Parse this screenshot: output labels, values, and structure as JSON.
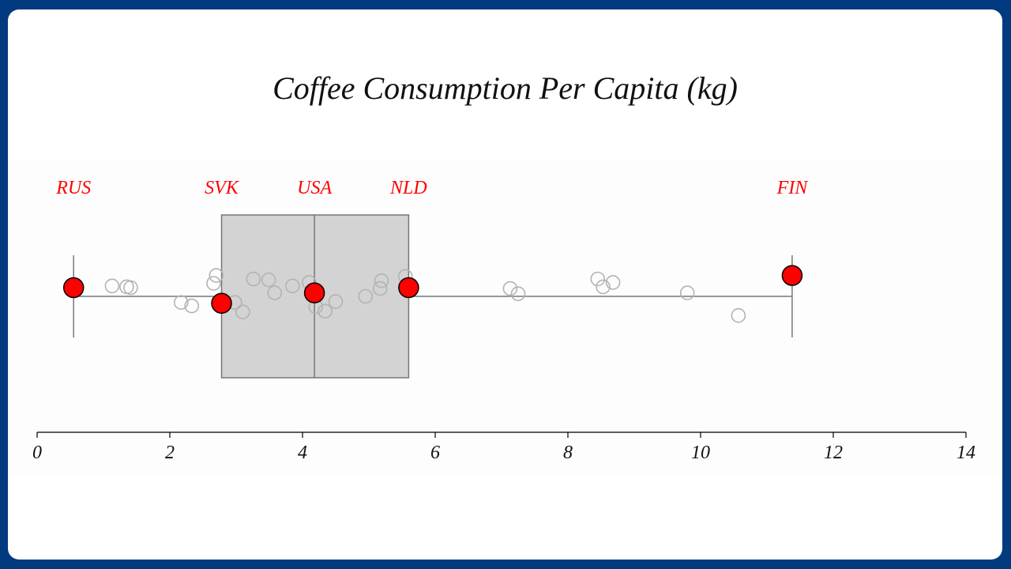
{
  "chart_data": {
    "type": "box",
    "title": "Coffee Consumption Per Capita (kg)",
    "xlabel": "",
    "ylabel": "",
    "xlim": [
      0,
      14
    ],
    "x_ticks": [
      "0",
      "2",
      "4",
      "6",
      "8",
      "10",
      "12",
      "14"
    ],
    "box": {
      "min": 0.55,
      "q1": 2.78,
      "median": 4.18,
      "q3": 5.6,
      "max": 11.38
    },
    "points": [
      {
        "x": 0.55,
        "jitter": 0.4
      },
      {
        "x": 1.13,
        "jitter": 0.6
      },
      {
        "x": 1.35,
        "jitter": 0.55
      },
      {
        "x": 1.41,
        "jitter": 0.5
      },
      {
        "x": 2.17,
        "jitter": -0.35
      },
      {
        "x": 2.33,
        "jitter": -0.55
      },
      {
        "x": 2.66,
        "jitter": 0.75
      },
      {
        "x": 2.7,
        "jitter": 1.2
      },
      {
        "x": 2.98,
        "jitter": -0.35
      },
      {
        "x": 3.1,
        "jitter": -0.9
      },
      {
        "x": 3.26,
        "jitter": 1
      },
      {
        "x": 3.49,
        "jitter": 0.95
      },
      {
        "x": 3.58,
        "jitter": 0.2
      },
      {
        "x": 3.85,
        "jitter": 0.6
      },
      {
        "x": 4.1,
        "jitter": 0.8
      },
      {
        "x": 4.2,
        "jitter": -0.6
      },
      {
        "x": 4.34,
        "jitter": -0.85
      },
      {
        "x": 4.5,
        "jitter": -0.3
      },
      {
        "x": 4.95,
        "jitter": 0
      },
      {
        "x": 5.17,
        "jitter": 0.45
      },
      {
        "x": 5.19,
        "jitter": 0.9
      },
      {
        "x": 5.55,
        "jitter": 1.15
      },
      {
        "x": 7.13,
        "jitter": 0.45
      },
      {
        "x": 7.25,
        "jitter": 0.15
      },
      {
        "x": 8.45,
        "jitter": 1
      },
      {
        "x": 8.53,
        "jitter": 0.55
      },
      {
        "x": 8.68,
        "jitter": 0.8
      },
      {
        "x": 9.8,
        "jitter": 0.2
      },
      {
        "x": 10.57,
        "jitter": -1.1
      }
    ],
    "highlighted": [
      {
        "label": "RUS",
        "x": 0.55,
        "jitter": 0.5
      },
      {
        "label": "SVK",
        "x": 2.78,
        "jitter": -0.4
      },
      {
        "label": "USA",
        "x": 4.18,
        "jitter": 0.2
      },
      {
        "label": "NLD",
        "x": 5.6,
        "jitter": 0.5
      },
      {
        "label": "FIN",
        "x": 11.38,
        "jitter": 1.2
      }
    ],
    "highlight_color": "#ff0000",
    "box_fill": "#d3d3d3",
    "box_stroke": "#777777",
    "point_stroke": "#b3b3b3",
    "grid": false
  },
  "colors": {
    "frame": "#023a80",
    "card": "#ffffff"
  }
}
